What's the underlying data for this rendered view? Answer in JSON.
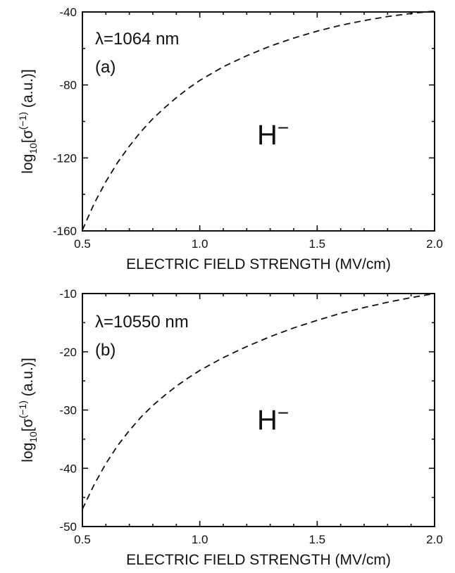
{
  "chart_data": [
    {
      "type": "line",
      "panel": "(a)",
      "annotation": "λ=1064 nm",
      "species": "H",
      "species_sup": "−",
      "xlabel": "ELECTRIC FIELD STRENGTH (MV/cm)",
      "ylabel": "log10[σ(−1) (a.u.)]",
      "ylabel_main": "log",
      "ylabel_sub": "10",
      "ylabel_sigma": "[σ",
      "ylabel_sup": "(−1)",
      "ylabel_rest": " (a.u.)]",
      "xlim": [
        0.5,
        2.0
      ],
      "ylim": [
        -160,
        -40
      ],
      "xticks": [
        0.5,
        1.0,
        1.5,
        2.0
      ],
      "xtick_labels": [
        "0.5",
        "1.0",
        "1.5",
        "2.0"
      ],
      "yticks": [
        -160,
        -120,
        -80,
        -40
      ],
      "ytick_labels": [
        "-160",
        "-120",
        "-80",
        "-40"
      ],
      "grid": false,
      "series": [
        {
          "style": "dashed",
          "x": [
            0.5,
            0.55,
            0.6,
            0.65,
            0.7,
            0.75,
            0.8,
            0.85,
            0.9,
            0.95,
            1.0,
            1.1,
            1.2,
            1.3,
            1.4,
            1.5,
            1.6,
            1.7,
            1.8,
            1.9,
            2.0
          ],
          "y": [
            -159.5,
            -145,
            -133,
            -122.5,
            -113.5,
            -105.5,
            -98.5,
            -92.5,
            -87,
            -82,
            -77.5,
            -70,
            -64,
            -58.7,
            -54.3,
            -50.5,
            -47.3,
            -44.7,
            -42.5,
            -40.8,
            -39.5
          ]
        }
      ]
    },
    {
      "type": "line",
      "panel": "(b)",
      "annotation": "λ=10550 nm",
      "species": "H",
      "species_sup": "−",
      "xlabel": "ELECTRIC FIELD STRENGTH (MV/cm)",
      "ylabel": "log10[σ(−1) (a.u.)]",
      "ylabel_main": "log",
      "ylabel_sub": "10",
      "ylabel_sigma": "[σ",
      "ylabel_sup": "(−1)",
      "ylabel_rest": " (a.u.)]",
      "xlim": [
        0.5,
        2.0
      ],
      "ylim": [
        -50,
        -10
      ],
      "xticks": [
        0.5,
        1.0,
        1.5,
        2.0
      ],
      "xtick_labels": [
        "0.5",
        "1.0",
        "1.5",
        "2.0"
      ],
      "yticks": [
        -50,
        -40,
        -30,
        -20,
        -10
      ],
      "ytick_labels": [
        "-50",
        "-40",
        "-30",
        "-20",
        "-10"
      ],
      "grid": false,
      "series": [
        {
          "style": "dashed",
          "x": [
            0.5,
            0.55,
            0.6,
            0.65,
            0.7,
            0.75,
            0.8,
            0.85,
            0.9,
            0.95,
            1.0,
            1.1,
            1.2,
            1.3,
            1.4,
            1.5,
            1.6,
            1.7,
            1.8,
            1.9,
            2.0
          ],
          "y": [
            -47,
            -42.8,
            -39.2,
            -36.1,
            -33.5,
            -31.2,
            -29.2,
            -27.5,
            -25.9,
            -24.5,
            -23.2,
            -21,
            -19.1,
            -17.4,
            -15.9,
            -14.6,
            -13.4,
            -12.4,
            -11.5,
            -10.7,
            -10
          ]
        }
      ]
    }
  ]
}
